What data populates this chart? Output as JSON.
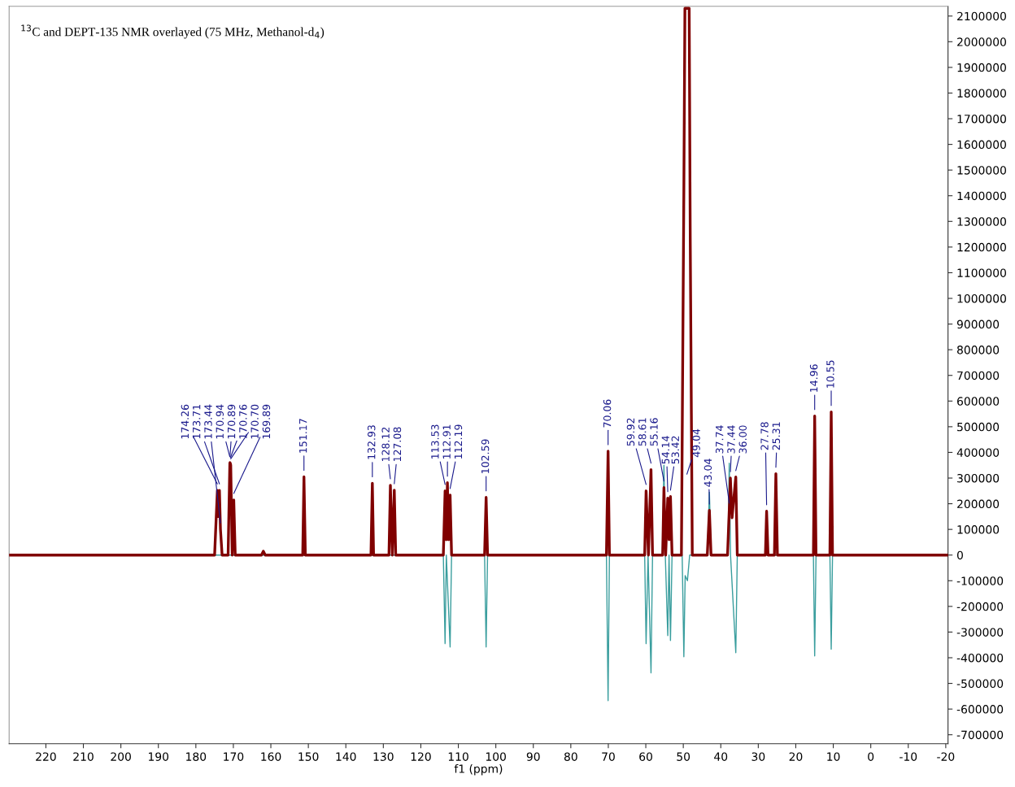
{
  "chart_data": {
    "type": "line",
    "title": "$^{13}$C and DEPT-135 NMR overlayed (75 MHz, Methanol-d$_{4}$)",
    "xlabel": "f1 (ppm)",
    "xlim": [
      229.8,
      -20.6
    ],
    "xticks": [
      220,
      210,
      200,
      190,
      180,
      170,
      160,
      150,
      140,
      130,
      120,
      110,
      100,
      90,
      80,
      70,
      60,
      50,
      40,
      30,
      20,
      10,
      0,
      -10,
      -20
    ],
    "ylim": [
      -735000,
      2138000
    ],
    "yticks": [
      -700000,
      -600000,
      -500000,
      -400000,
      -300000,
      -200000,
      -100000,
      0,
      100000,
      200000,
      300000,
      400000,
      500000,
      600000,
      700000,
      800000,
      900000,
      1000000,
      1100000,
      1200000,
      1300000,
      1400000,
      1500000,
      1600000,
      1700000,
      1800000,
      1900000,
      2000000,
      2100000
    ],
    "grid": false,
    "marker": "none",
    "line_style": "solid",
    "series": [
      {
        "color": "#3a9e9e",
        "x": [
          229.8,
          114.0,
          113.53,
          113.2,
          112.19,
          111.8,
          103.0,
          102.59,
          102.2,
          70.5,
          70.06,
          69.7,
          60.3,
          59.92,
          59.4,
          58.61,
          58.2,
          55.6,
          55.16,
          54.8,
          54.14,
          53.8,
          53.42,
          53.0,
          50.3,
          49.85,
          49.5,
          48.9,
          48.3,
          43.6,
          43.04,
          42.6,
          38.1,
          37.74,
          37.4,
          36.0,
          35.6,
          15.3,
          14.96,
          14.6,
          10.9,
          10.55,
          10.2,
          -20.6
        ],
        "values": [
          0,
          0,
          -345000,
          0,
          -358000,
          0,
          0,
          -358000,
          0,
          0,
          -567000,
          0,
          0,
          -345000,
          0,
          -459000,
          0,
          0,
          350000,
          0,
          -314000,
          0,
          -333000,
          0,
          0,
          -396000,
          -80000,
          -100000,
          0,
          0,
          245000,
          0,
          0,
          358000,
          0,
          -380000,
          0,
          0,
          -393000,
          0,
          0,
          -367000,
          0,
          0
        ]
      },
      {
        "color": "#800000",
        "x": [
          229.8,
          175.0,
          174.26,
          173.95,
          173.71,
          173.44,
          173.0,
          171.4,
          170.94,
          170.89,
          170.76,
          170.7,
          170.3,
          169.89,
          169.5,
          162.5,
          162.0,
          161.5,
          151.5,
          151.17,
          150.8,
          133.3,
          132.93,
          132.6,
          128.5,
          128.12,
          127.6,
          127.08,
          126.7,
          114.0,
          113.53,
          113.2,
          112.91,
          112.6,
          112.19,
          111.8,
          103.0,
          102.59,
          102.2,
          70.5,
          70.06,
          69.7,
          60.3,
          59.92,
          59.3,
          58.61,
          58.2,
          55.5,
          55.16,
          54.7,
          54.14,
          53.8,
          53.42,
          53.0,
          50.5,
          49.85,
          49.57,
          49.28,
          49.0,
          48.72,
          48.43,
          48.15,
          47.6,
          43.6,
          43.04,
          42.6,
          38.2,
          37.74,
          37.44,
          37.0,
          36.0,
          35.6,
          28.1,
          27.78,
          27.4,
          25.7,
          25.31,
          24.9,
          15.3,
          14.96,
          14.6,
          10.9,
          10.55,
          10.2,
          -20.6
        ],
        "values": [
          0,
          0,
          252000,
          150000,
          252000,
          100000,
          0,
          0,
          358000,
          360000,
          355000,
          350000,
          0,
          215000,
          0,
          0,
          15000,
          0,
          0,
          305000,
          0,
          0,
          280000,
          0,
          0,
          272000,
          0,
          253000,
          0,
          0,
          250000,
          60000,
          282000,
          60000,
          234000,
          0,
          0,
          225000,
          0,
          0,
          405000,
          0,
          0,
          250000,
          0,
          333000,
          0,
          0,
          263000,
          0,
          222000,
          60000,
          228000,
          0,
          0,
          1420000,
          2130000,
          2130000,
          2130000,
          2130000,
          2130000,
          1240000,
          0,
          0,
          174000,
          0,
          0,
          177000,
          300000,
          145000,
          304000,
          0,
          0,
          171000,
          0,
          0,
          317000,
          0,
          0,
          542000,
          0,
          0,
          558000,
          0,
          0
        ]
      }
    ],
    "annotations": [
      {
        "text": "174.26",
        "x": 174.26,
        "y": 252000
      },
      {
        "text": "173.71",
        "x": 173.71,
        "y": 252000
      },
      {
        "text": "173.44",
        "x": 173.44,
        "y": 100000
      },
      {
        "text": "170.94",
        "x": 170.94,
        "y": 358000
      },
      {
        "text": "170.89",
        "x": 170.89,
        "y": 360000
      },
      {
        "text": "170.76",
        "x": 170.76,
        "y": 355000
      },
      {
        "text": "170.70",
        "x": 170.7,
        "y": 350000
      },
      {
        "text": "169.89",
        "x": 169.89,
        "y": 215000
      },
      {
        "text": "151.17",
        "x": 151.17,
        "y": 305000
      },
      {
        "text": "132.93",
        "x": 132.93,
        "y": 280000
      },
      {
        "text": "128.12",
        "x": 128.12,
        "y": 272000
      },
      {
        "text": "127.08",
        "x": 127.08,
        "y": 253000
      },
      {
        "text": "113.53",
        "x": 113.53,
        "y": 250000
      },
      {
        "text": "112.91",
        "x": 112.91,
        "y": 282000
      },
      {
        "text": "112.19",
        "x": 112.19,
        "y": 234000
      },
      {
        "text": "102.59",
        "x": 102.59,
        "y": 225000
      },
      {
        "text": "70.06",
        "x": 70.06,
        "y": 405000
      },
      {
        "text": "59.92",
        "x": 59.92,
        "y": 250000
      },
      {
        "text": "58.61",
        "x": 58.61,
        "y": 333000
      },
      {
        "text": "55.16",
        "x": 55.16,
        "y": 263000
      },
      {
        "text": "54.14",
        "x": 54.14,
        "y": 222000
      },
      {
        "text": "53.42",
        "x": 53.42,
        "y": 228000
      },
      {
        "text": "49.04",
        "x": 49.04,
        "y": 290000
      },
      {
        "text": "43.04",
        "x": 43.04,
        "y": 174000
      },
      {
        "text": "37.74",
        "x": 37.74,
        "y": 177000
      },
      {
        "text": "37.44",
        "x": 37.44,
        "y": 300000
      },
      {
        "text": "36.00",
        "x": 36.0,
        "y": 304000
      },
      {
        "text": "27.78",
        "x": 27.78,
        "y": 171000
      },
      {
        "text": "25.31",
        "x": 25.31,
        "y": 317000
      },
      {
        "text": "14.96",
        "x": 14.96,
        "y": 542000
      },
      {
        "text": "10.55",
        "x": 10.55,
        "y": 558000
      }
    ]
  }
}
